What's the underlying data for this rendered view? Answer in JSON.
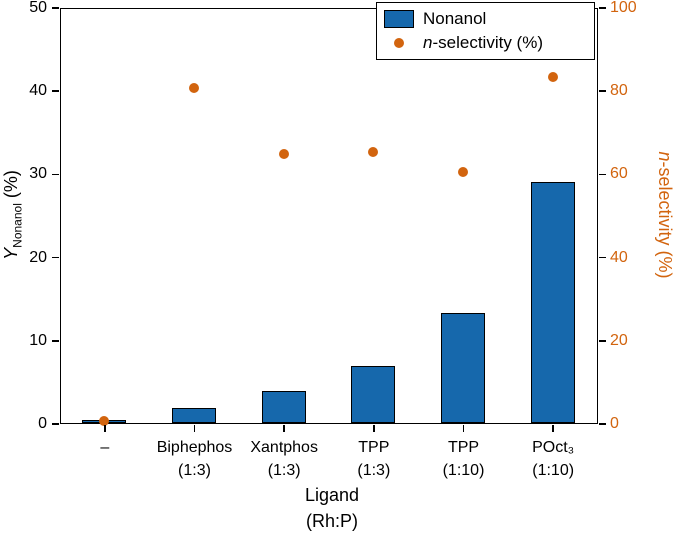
{
  "chart_data": {
    "type": "bar",
    "title": "",
    "categories": [
      {
        "line1": "–",
        "line2": ""
      },
      {
        "line1": "Biphephos",
        "line2": "(1:3)"
      },
      {
        "line1": "Xantphos",
        "line2": "(1:3)"
      },
      {
        "line1": "TPP",
        "line2": "(1:3)"
      },
      {
        "line1": "TPP",
        "line2": "(1:10)"
      },
      {
        "line1": "POct₃",
        "line2": "(1:10)"
      }
    ],
    "series": [
      {
        "name": "Nonanol",
        "type": "bar",
        "axis": "left",
        "color": "#1668ac",
        "values": [
          0.4,
          1.8,
          3.9,
          6.9,
          13.2,
          29.0
        ]
      },
      {
        "name": "n-selectivity (%)",
        "type": "scatter",
        "axis": "right",
        "color": "#d2640e",
        "values": [
          0.5,
          80.6,
          64.8,
          65.2,
          60.4,
          83.4
        ]
      }
    ],
    "left_axis": {
      "symbol": "Y",
      "subscript": "Nonanol",
      "suffix": " (%)",
      "min": 0,
      "max": 50,
      "ticks": [
        0,
        10,
        20,
        30,
        40,
        50
      ]
    },
    "right_axis": {
      "italic": "n",
      "rest": "-selectivity (%)",
      "min": 0,
      "max": 100,
      "ticks": [
        0,
        20,
        40,
        60,
        80,
        100
      ],
      "color": "#d2640e"
    },
    "x_axis": {
      "title_line1": "Ligand",
      "title_line2": "(Rh:P)"
    },
    "legend": [
      {
        "marker": "bar",
        "color": "#1668ac",
        "italic": "",
        "label": "Nonanol"
      },
      {
        "marker": "dot",
        "color": "#d2640e",
        "italic": "n",
        "label": "-selectivity (%)"
      }
    ],
    "layout": {
      "grid": false,
      "legend_position": "top-right",
      "left_ylim": [
        0,
        50
      ],
      "right_ylim": [
        0,
        100
      ]
    }
  }
}
